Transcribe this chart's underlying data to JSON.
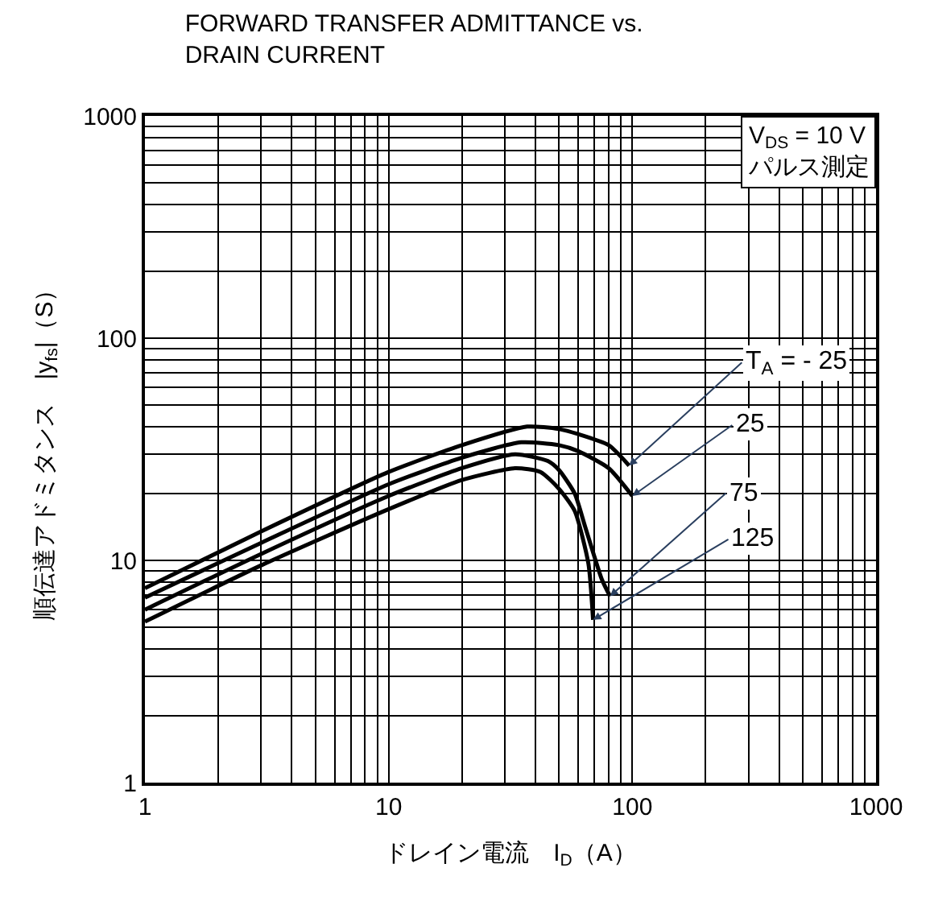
{
  "chart_data": {
    "type": "line",
    "title": "FORWARD TRANSFER ADMITTANCE vs.\nDRAIN CURRENT",
    "xlabel": "ドレイン電流　I$_{D}$（A）",
    "ylabel": "順伝達アドミタンス　|y$_{fs}$|（S）",
    "log": "xy",
    "xlim": [
      1,
      1000
    ],
    "ylim": [
      1,
      1000
    ],
    "xticks": [
      1,
      10,
      100,
      1000
    ],
    "yticks": [
      1,
      10,
      100,
      1000
    ],
    "grid": true,
    "legend": false,
    "marker": "none",
    "line_style": "solid",
    "annotations": [
      "V$_{DS}$ = 10 V\nパルス測定"
    ],
    "series": [
      {
        "name": "T$_{A}$ = - 25",
        "color": "#000000",
        "x": [
          1,
          3,
          10,
          20,
          37,
          50,
          60,
          80,
          97
        ],
        "values": [
          7.5,
          13.5,
          25,
          33,
          40,
          39,
          37,
          33,
          26.7
        ]
      },
      {
        "name": "25",
        "color": "#000000",
        "x": [
          1,
          3,
          10,
          20,
          35,
          50,
          60,
          80,
          100
        ],
        "values": [
          6.8,
          12,
          22,
          29,
          34,
          33,
          31,
          26,
          19.5
        ]
      },
      {
        "name": "75",
        "color": "#000000",
        "x": [
          1,
          3,
          10,
          20,
          33,
          45,
          50,
          58,
          64,
          75,
          81
        ],
        "values": [
          6.0,
          10.7,
          19.5,
          26,
          30,
          28,
          25.5,
          20,
          14.2,
          8.2,
          6.9
        ]
      },
      {
        "name": "125",
        "color": "#000000",
        "x": [
          1,
          3,
          10,
          20,
          33,
          42,
          50,
          58,
          66,
          69
        ],
        "values": [
          5.3,
          9.5,
          17,
          23,
          26,
          25,
          21,
          16.7,
          9.7,
          5.4
        ]
      }
    ]
  }
}
